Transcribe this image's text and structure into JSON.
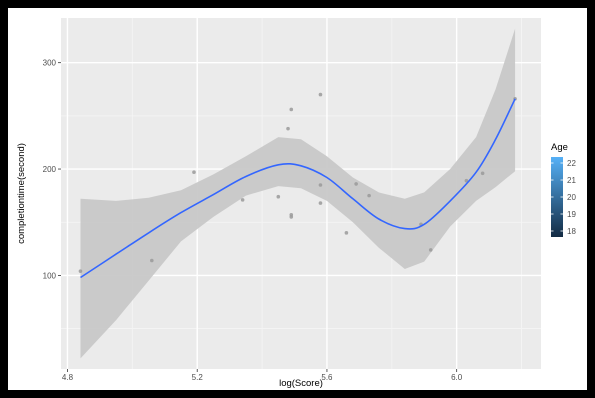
{
  "chart_data": {
    "type": "scatter",
    "xlabel": "log(Score)",
    "ylabel": "completiontime(second)",
    "xlim": [
      4.78,
      6.26
    ],
    "ylim": [
      12,
      342
    ],
    "x_ticks": [
      4.8,
      5.2,
      5.6,
      6.0
    ],
    "x_tick_labels": [
      "4.8",
      "5.2",
      "5.6",
      "6.0"
    ],
    "y_ticks": [
      100,
      200,
      300
    ],
    "y_tick_labels": [
      "100",
      "200",
      "300"
    ],
    "grid": true,
    "background": "#ebebeb",
    "points": [
      {
        "x": 4.84,
        "y": 104
      },
      {
        "x": 5.06,
        "y": 114
      },
      {
        "x": 5.19,
        "y": 197
      },
      {
        "x": 5.34,
        "y": 171
      },
      {
        "x": 5.45,
        "y": 174
      },
      {
        "x": 5.48,
        "y": 238
      },
      {
        "x": 5.49,
        "y": 256
      },
      {
        "x": 5.49,
        "y": 157
      },
      {
        "x": 5.49,
        "y": 155
      },
      {
        "x": 5.58,
        "y": 270
      },
      {
        "x": 5.58,
        "y": 185
      },
      {
        "x": 5.58,
        "y": 168
      },
      {
        "x": 5.66,
        "y": 140
      },
      {
        "x": 5.69,
        "y": 186
      },
      {
        "x": 5.73,
        "y": 175
      },
      {
        "x": 5.89,
        "y": 148
      },
      {
        "x": 5.92,
        "y": 124
      },
      {
        "x": 6.03,
        "y": 189
      },
      {
        "x": 6.08,
        "y": 196
      },
      {
        "x": 6.18,
        "y": 266
      }
    ],
    "point_color": "#9a9a9a",
    "smooth": {
      "color": "#3366ff",
      "ribbon_color": "#c8c8c8",
      "x": [
        4.84,
        4.95,
        5.05,
        5.15,
        5.25,
        5.35,
        5.45,
        5.52,
        5.6,
        5.68,
        5.76,
        5.84,
        5.9,
        5.98,
        6.06,
        6.12,
        6.18
      ],
      "y": [
        98,
        120,
        140,
        159,
        176,
        193,
        204,
        203,
        192,
        172,
        153,
        144,
        148,
        170,
        197,
        228,
        266
      ],
      "ymin": [
        22,
        58,
        95,
        132,
        155,
        175,
        184,
        182,
        170,
        150,
        126,
        106,
        113,
        146,
        170,
        183,
        198
      ],
      "ymax": [
        172,
        170,
        173,
        180,
        195,
        212,
        230,
        228,
        212,
        192,
        178,
        172,
        178,
        200,
        230,
        275,
        332
      ]
    },
    "legend": {
      "title": "Age",
      "position": "right",
      "labels": [
        "22",
        "21",
        "20",
        "19",
        "18"
      ],
      "values": [
        22,
        21,
        20,
        19,
        18
      ],
      "range": [
        18,
        22
      ],
      "color_low": "#132b43",
      "color_high": "#56b1f7"
    }
  }
}
